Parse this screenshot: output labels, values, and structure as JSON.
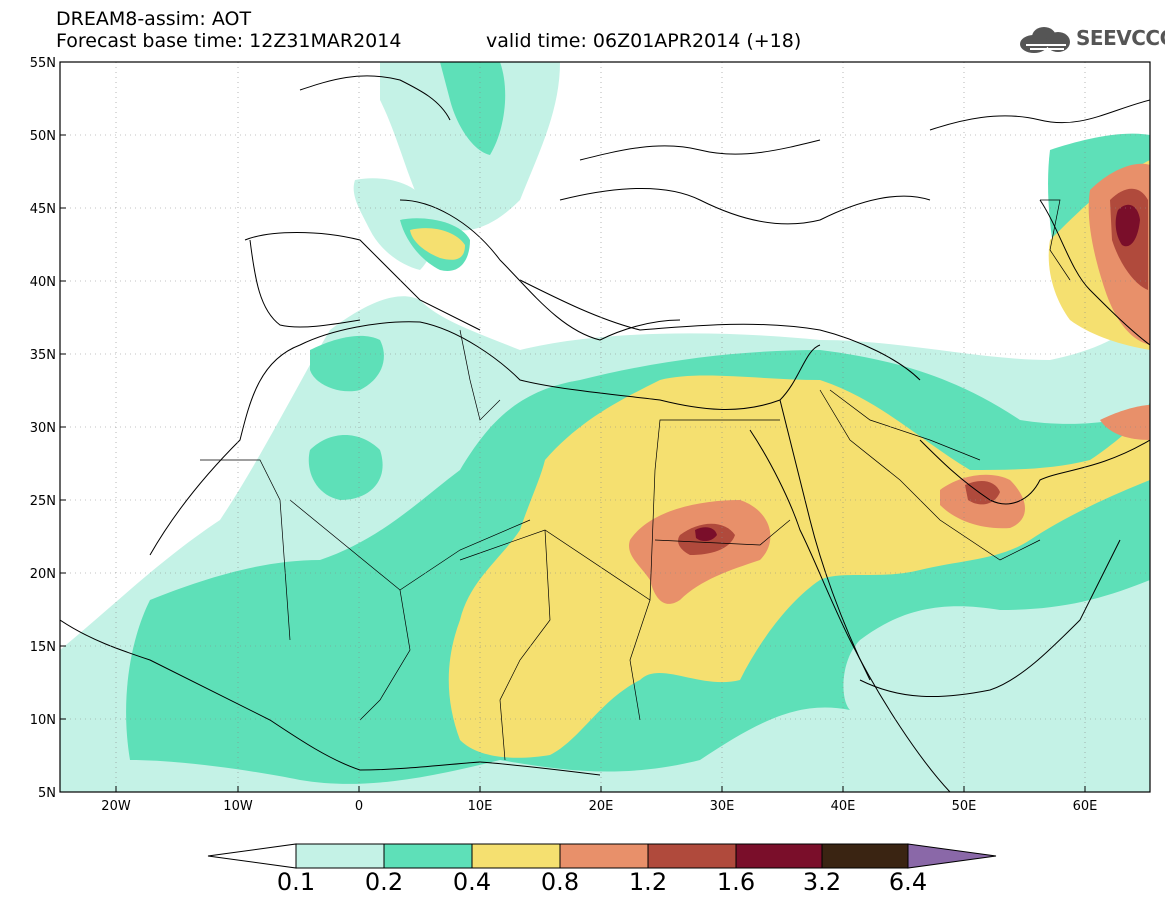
{
  "header": {
    "model": "DREAM8-assim: AOT",
    "base_time": "Forecast base time: 12Z31MAR2014",
    "valid_time": "valid time: 06Z01APR2014 (+18)"
  },
  "logo": {
    "text": "SEEVCCC",
    "icon": "cloud-icon"
  },
  "map": {
    "lat_labels": [
      "55N",
      "50N",
      "45N",
      "40N",
      "35N",
      "30N",
      "25N",
      "20N",
      "15N",
      "10N",
      "5N"
    ],
    "lon_labels": [
      "20W",
      "10W",
      "0",
      "10E",
      "20E",
      "30E",
      "40E",
      "50E",
      "60E"
    ],
    "region": {
      "lon_range": [
        -25,
        65
      ],
      "lat_range": [
        5,
        55
      ]
    },
    "grid": true
  },
  "colorbar": {
    "labels": [
      "0.1",
      "0.2",
      "0.4",
      "0.8",
      "1.2",
      "1.6",
      "3.2",
      "6.4"
    ],
    "colors": [
      "#ffffff",
      "#c4f2e6",
      "#5ee0b8",
      "#f5e070",
      "#e8906a",
      "#b04a3c",
      "#7a0e2a",
      "#3a2412",
      "#8a68a8"
    ]
  }
}
